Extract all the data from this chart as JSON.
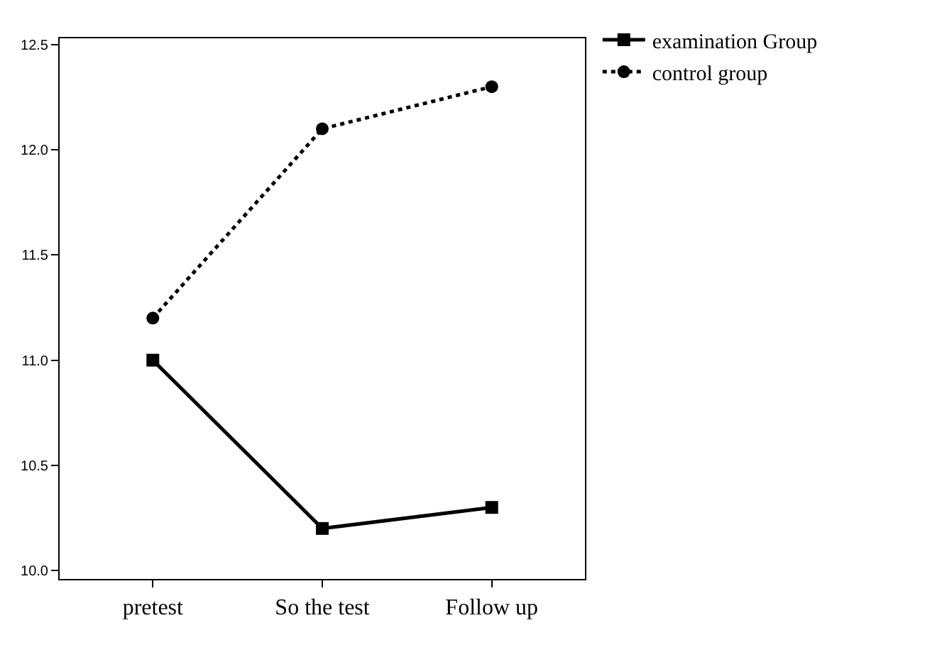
{
  "chart_data": {
    "type": "line",
    "categories": [
      "pretest",
      "So the test",
      "Follow up"
    ],
    "series": [
      {
        "name": "examination Group",
        "color": "#000000",
        "values": [
          11.0,
          10.2,
          10.3
        ],
        "marker": "square",
        "line_style": "solid"
      },
      {
        "name": "control group",
        "color": "#000000",
        "values": [
          11.2,
          12.1,
          12.3
        ],
        "marker": "circle",
        "line_style": "dotted"
      }
    ],
    "ylim": [
      9.96,
      12.53
    ],
    "yticks": [
      {
        "value": 10.0,
        "label": "10.0"
      },
      {
        "value": 10.5,
        "label": "10.5"
      },
      {
        "value": 11.0,
        "label": "11.0"
      },
      {
        "value": 11.5,
        "label": "11.5"
      },
      {
        "value": 12.0,
        "label": "12.0"
      },
      {
        "value": 12.5,
        "label": "12.5"
      }
    ],
    "legend": "top right"
  }
}
